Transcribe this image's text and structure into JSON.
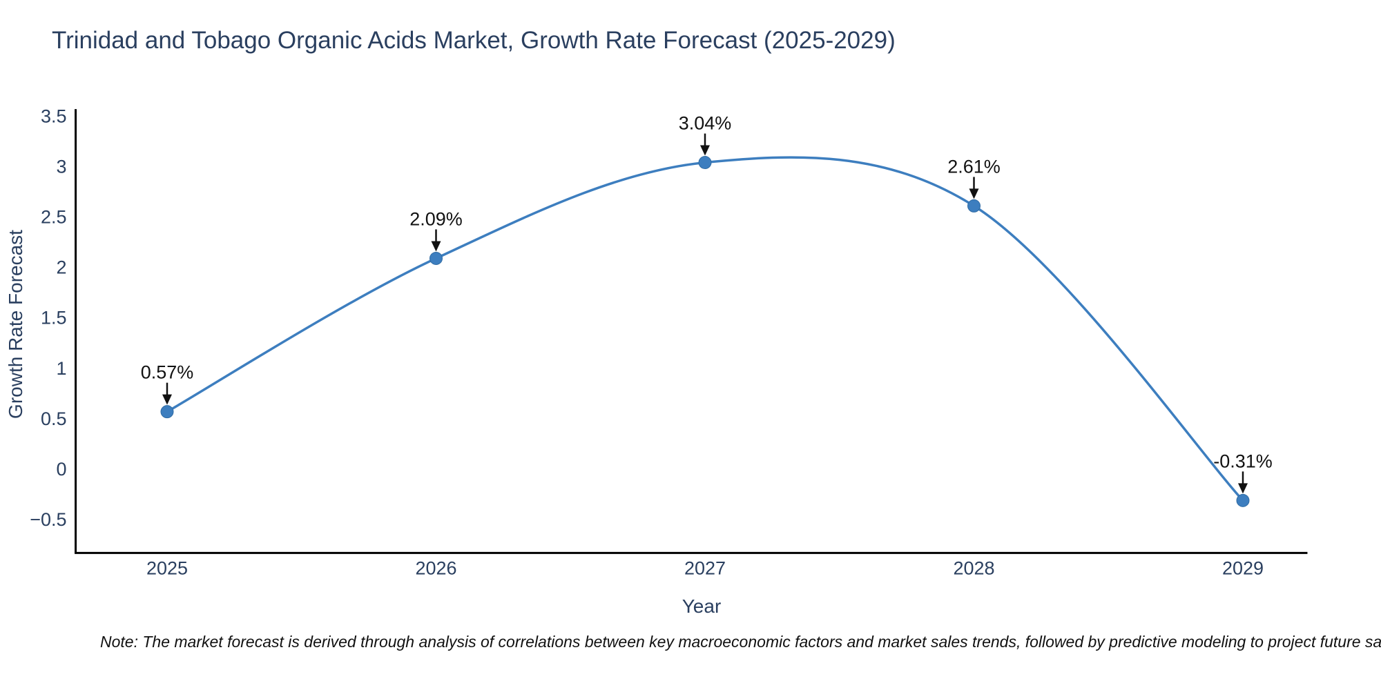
{
  "title": "Trinidad and Tobago Organic Acids Market, Growth Rate Forecast (2025-2029)",
  "note": "Note: The market forecast is derived through analysis of correlations between key macroeconomic factors and market sales trends, followed by predictive modeling to project future sa",
  "chart_data": {
    "type": "line",
    "line_shape": "spline",
    "title": "Trinidad and Tobago Organic Acids Market, Growth Rate Forecast (2025-2029)",
    "xlabel": "Year",
    "ylabel": "Growth Rate Forecast",
    "x": [
      2025,
      2026,
      2027,
      2028,
      2029
    ],
    "y": [
      0.57,
      2.09,
      3.04,
      2.61,
      -0.31
    ],
    "point_labels": [
      "0.57%",
      "2.09%",
      "3.04%",
      "2.61%",
      "-0.31%"
    ],
    "x_tick_labels": [
      "2025",
      "2026",
      "2027",
      "2028",
      "2029"
    ],
    "y_ticks": [
      3.5,
      3,
      2.5,
      2,
      1.5,
      1,
      0.5,
      0,
      -0.5
    ],
    "xlim": [
      2024.66,
      2029.24
    ],
    "ylim": [
      -0.83,
      3.57
    ],
    "grid": false,
    "legend": false,
    "colors": {
      "line": "#3d7ebf",
      "marker": "#3d7ebf",
      "marker_edge": "#2f6ba3",
      "axis_line": "#000000",
      "tick_label": "#2a3f5f",
      "axis_title": "#2a3f5f",
      "annotation": "#111111",
      "background": "#ffffff"
    }
  }
}
